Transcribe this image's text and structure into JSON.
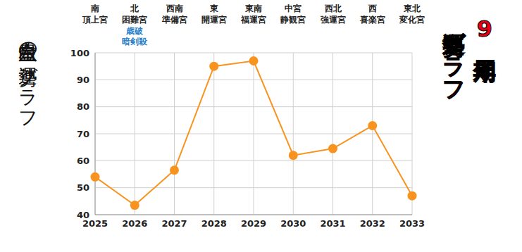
{
  "chart_data": {
    "type": "line",
    "title": "六白金星の運勢グラフ",
    "subtitle": [
      "9年周期",
      "運勢グラフ"
    ],
    "categories": [
      "2025",
      "2026",
      "2027",
      "2028",
      "2029",
      "2030",
      "2031",
      "2032",
      "2033"
    ],
    "values": [
      54,
      43.5,
      56.5,
      95,
      97,
      62,
      64.5,
      73,
      47
    ],
    "directions": [
      "南",
      "北",
      "西南",
      "東",
      "東南",
      "中宮",
      "西北",
      "西",
      "東北"
    ],
    "palaces": [
      "頂上宮",
      "困難宮",
      "準備宮",
      "開運宮",
      "福運宮",
      "静観宮",
      "強運宮",
      "喜楽宮",
      "変化宮"
    ],
    "annotations": [
      {
        "x": "2026",
        "lines": [
          "歳破",
          "暗剣殺"
        ]
      }
    ],
    "color": "#f7931e",
    "marker": "circle",
    "ylim": [
      40,
      100
    ],
    "yticks": [
      40,
      50,
      60,
      70,
      80,
      90,
      100
    ],
    "grid": true
  }
}
